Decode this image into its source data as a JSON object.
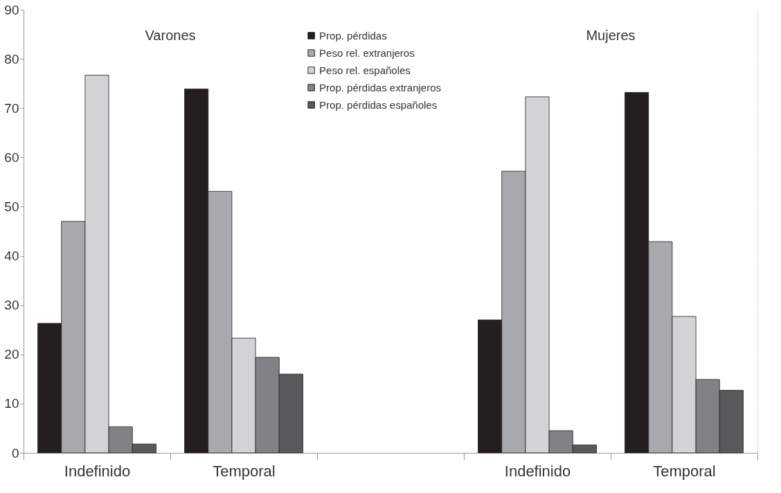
{
  "chart_data": {
    "type": "bar",
    "categories": [
      "Indefinido",
      "Temporal",
      null,
      "Indefinido",
      "Temporal"
    ],
    "series": [
      {
        "name": "Prop. pérdidas",
        "color": "#231f20",
        "values": [
          26.3,
          73.9,
          null,
          27.0,
          73.2
        ]
      },
      {
        "name": "Peso rel. extranjeros",
        "color": "#a7a9ac",
        "values": [
          47.0,
          53.1,
          null,
          57.2,
          42.9
        ]
      },
      {
        "name": "Peso rel. españoles",
        "color": "#d1d3d4",
        "values": [
          76.7,
          23.3,
          null,
          72.3,
          27.7
        ]
      },
      {
        "name": "Prop. pérdidas extranjeros",
        "color": "#808285",
        "values": [
          5.3,
          19.4,
          null,
          4.5,
          14.9
        ]
      },
      {
        "name": "Prop. pérdidas españoles",
        "color": "#58595b",
        "values": [
          1.8,
          16.0,
          null,
          1.6,
          12.7
        ]
      }
    ],
    "annotations": [
      "Varones",
      "Mujeres"
    ],
    "ylim": [
      0,
      90
    ],
    "yticks": [
      0,
      10,
      20,
      30,
      40,
      50,
      60,
      70,
      80,
      90
    ],
    "grid": "y",
    "legend": "top"
  }
}
